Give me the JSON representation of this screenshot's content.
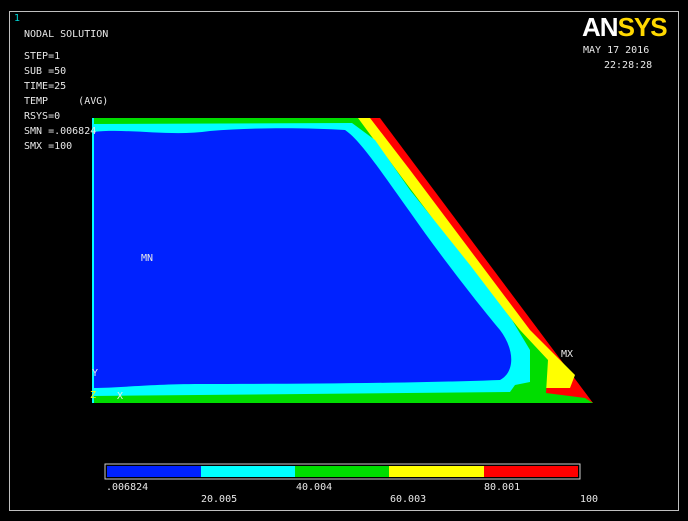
{
  "window_number": "1",
  "brand": {
    "name_a": "AN",
    "name_b": "SYS"
  },
  "date": "MAY 17 2016",
  "time": "22:28:28",
  "info": {
    "title": "NODAL SOLUTION",
    "step": "STEP=1",
    "sub": "SUB =50",
    "time": "TIME=25",
    "temp": "TEMP     (AVG)",
    "rsys": "RSYS=0",
    "smn": "SMN =.006824",
    "smx": "SMX =100"
  },
  "markers": {
    "mn": "MN",
    "mx": "MX",
    "axis_y": "Y",
    "axis_x": "X",
    "axis_z": "Z"
  },
  "legend": {
    "colors": [
      "#0022ff",
      "#00ffff",
      "#00dd00",
      "#ffff00",
      "#ff0000"
    ],
    "labels_bottom": [
      ".006824",
      "40.004",
      "80.001"
    ],
    "labels_top": [
      "20.005",
      "60.003",
      "100"
    ]
  }
}
